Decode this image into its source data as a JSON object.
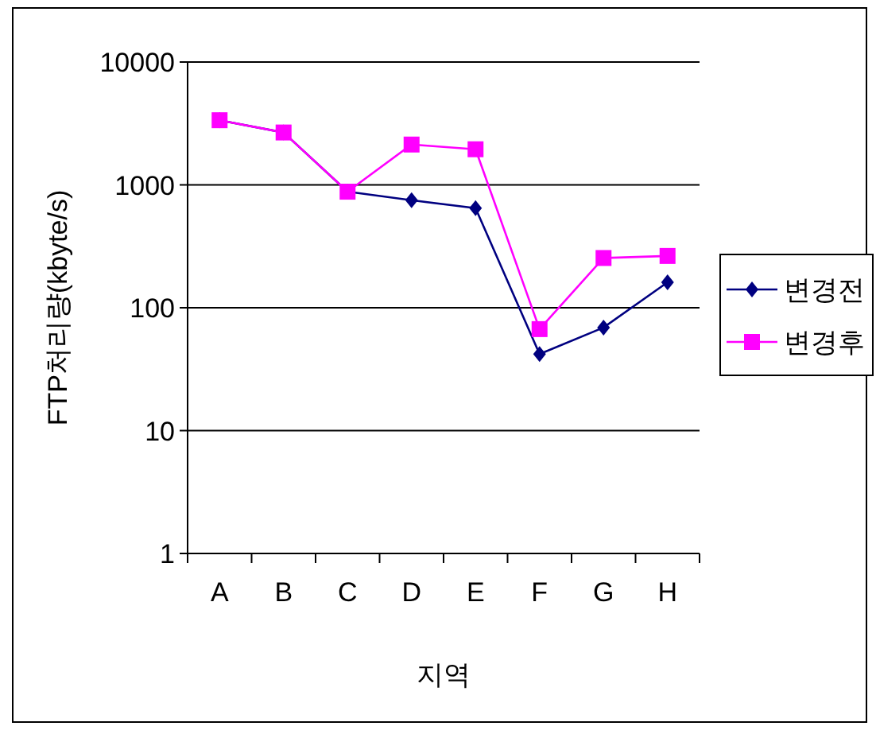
{
  "chart_data": {
    "type": "line",
    "xlabel": "지역",
    "ylabel": "FTP처리량(kbyte/s)",
    "categories": [
      "A",
      "B",
      "C",
      "D",
      "E",
      "F",
      "G",
      "H"
    ],
    "log": "y",
    "ylim": [
      1,
      10000
    ],
    "yticks": [
      1,
      10,
      100,
      1000,
      10000
    ],
    "grid": "y",
    "legend": "right",
    "line_style": "solid",
    "series": [
      {
        "name": "변경전",
        "color": "#000080",
        "marker": "diamond",
        "values": [
          3360,
          2670,
          880,
          750,
          646,
          42,
          69,
          161
        ]
      },
      {
        "name": "변경후",
        "color": "#ff00ff",
        "marker": "square",
        "values": [
          3360,
          2670,
          880,
          2130,
          1950,
          67,
          254,
          264
        ]
      }
    ]
  }
}
